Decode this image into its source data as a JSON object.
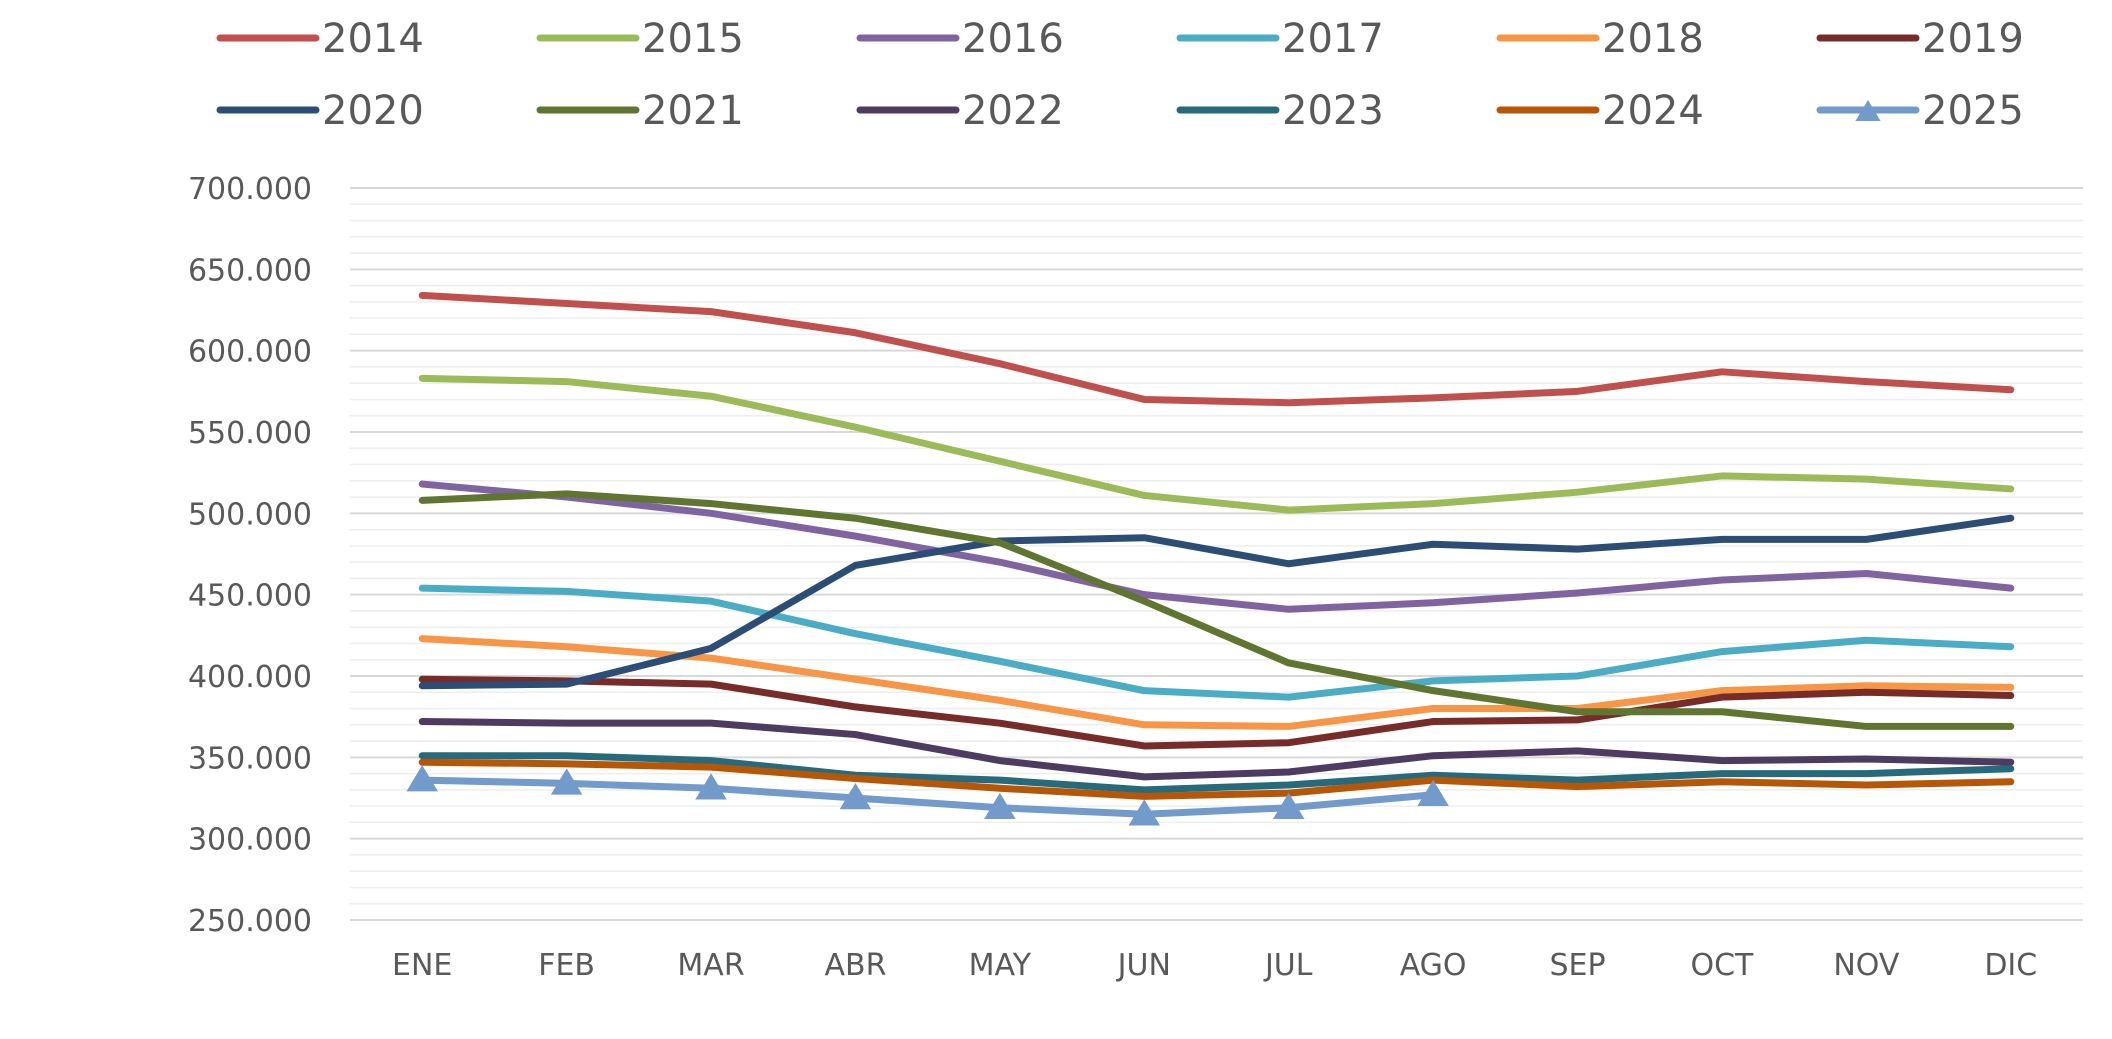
{
  "chart_data": {
    "type": "line",
    "title": "",
    "xlabel": "",
    "ylabel": "",
    "categories": [
      "ENE",
      "FEB",
      "MAR",
      "ABR",
      "MAY",
      "JUN",
      "JUL",
      "AGO",
      "SEP",
      "OCT",
      "NOV",
      "DIC"
    ],
    "ylim": [
      250000,
      700000
    ],
    "yticks": [
      250000,
      300000,
      350000,
      400000,
      450000,
      500000,
      550000,
      600000,
      650000,
      700000
    ],
    "ytick_labels": [
      "250.000",
      "300.000",
      "350.000",
      "400.000",
      "450.000",
      "500.000",
      "550.000",
      "600.000",
      "650.000",
      "700.000"
    ],
    "grid": "horizontal major and minor",
    "legend_position": "top",
    "series": [
      {
        "name": "2014",
        "color": "#C0504D",
        "values": [
          634000,
          629000,
          624000,
          611000,
          592000,
          570000,
          568000,
          571000,
          575000,
          587000,
          581000,
          576000
        ]
      },
      {
        "name": "2015",
        "color": "#9BBB59",
        "values": [
          583000,
          581000,
          572000,
          553000,
          532000,
          511000,
          502000,
          506000,
          513000,
          523000,
          521000,
          515000
        ]
      },
      {
        "name": "2016",
        "color": "#8064A2",
        "values": [
          518000,
          510000,
          500000,
          486000,
          470000,
          450000,
          441000,
          445000,
          451000,
          459000,
          463000,
          454000
        ]
      },
      {
        "name": "2017",
        "color": "#4BACC6",
        "values": [
          454000,
          452000,
          446000,
          426000,
          409000,
          391000,
          387000,
          397000,
          400000,
          415000,
          422000,
          418000
        ]
      },
      {
        "name": "2018",
        "color": "#F79646",
        "values": [
          423000,
          418000,
          411000,
          398000,
          385000,
          370000,
          369000,
          380000,
          380000,
          391000,
          394000,
          393000
        ]
      },
      {
        "name": "2019",
        "color": "#772C2A",
        "values": [
          398000,
          397000,
          395000,
          381000,
          371000,
          357000,
          359000,
          372000,
          373000,
          387000,
          390000,
          388000
        ]
      },
      {
        "name": "2020",
        "color": "#2C4D75",
        "values": [
          394000,
          395000,
          417000,
          468000,
          483000,
          485000,
          469000,
          481000,
          478000,
          484000,
          484000,
          497000
        ]
      },
      {
        "name": "2021",
        "color": "#5F7530",
        "values": [
          508000,
          512000,
          506000,
          497000,
          482000,
          446000,
          408000,
          391000,
          378000,
          378000,
          369000,
          369000
        ]
      },
      {
        "name": "2022",
        "color": "#4D3B62",
        "values": [
          372000,
          371000,
          371000,
          364000,
          348000,
          338000,
          341000,
          351000,
          354000,
          348000,
          349000,
          347000
        ]
      },
      {
        "name": "2023",
        "color": "#276A7C",
        "values": [
          351000,
          351000,
          348000,
          339000,
          336000,
          330000,
          333000,
          339000,
          336000,
          340000,
          340000,
          343000
        ]
      },
      {
        "name": "2024",
        "color": "#B65708",
        "values": [
          347000,
          346000,
          344000,
          337000,
          331000,
          326000,
          328000,
          336000,
          332000,
          335000,
          333000,
          335000
        ]
      },
      {
        "name": "2025",
        "color": "#729ACA",
        "marker": "triangle",
        "values": [
          336000,
          334000,
          331000,
          325000,
          319000,
          315000,
          319000,
          327000,
          null,
          null,
          null,
          null
        ]
      }
    ]
  }
}
